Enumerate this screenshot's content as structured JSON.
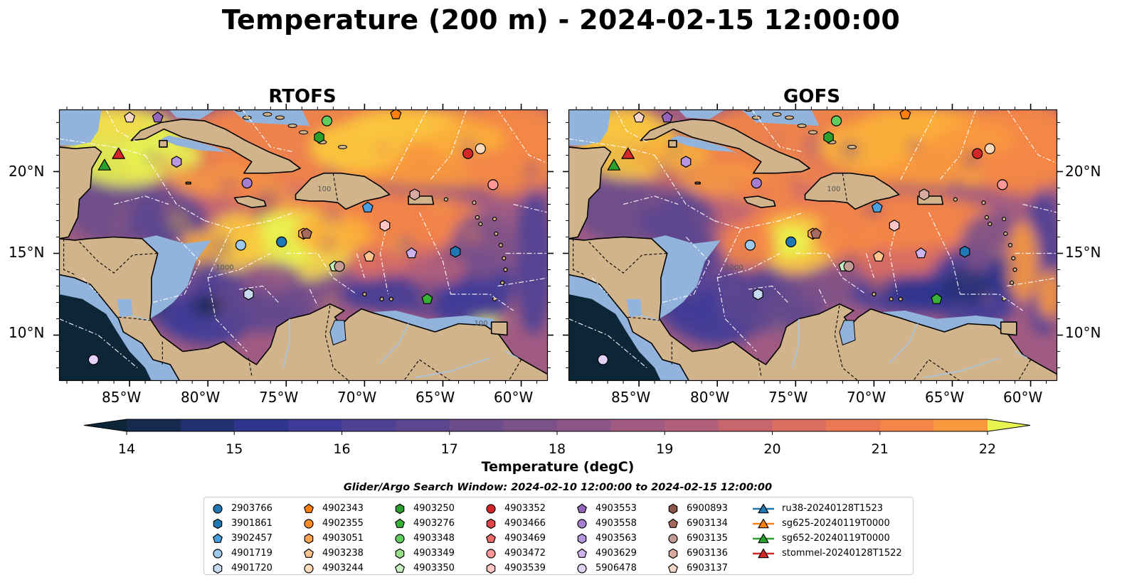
{
  "title": "Temperature (200 m) - 2024-02-15 12:00:00",
  "panels": [
    {
      "title": "RTOFS"
    },
    {
      "title": "GOFS"
    }
  ],
  "map": {
    "lon_ticks": [
      "85°W",
      "80°W",
      "75°W",
      "70°W",
      "65°W",
      "60°W"
    ],
    "lat_ticks": [
      "20°N",
      "15°N",
      "10°N"
    ],
    "extent": {
      "lon": [
        -89.5,
        -58.3
      ],
      "lat": [
        7.2,
        23.8
      ]
    },
    "contour_labels": [
      "1000",
      "100",
      "100"
    ],
    "colors": {
      "land": "#d2b48c",
      "shelf": "#92b4dc",
      "coast": "#000000",
      "eez": "#ffffff"
    }
  },
  "colorbar": {
    "label": "Temperature (degC)",
    "ticks": [
      "14",
      "15",
      "16",
      "17",
      "18",
      "19",
      "20",
      "21",
      "22"
    ],
    "range": [
      14,
      22
    ],
    "step": 0.5,
    "colors": [
      "#0c2638",
      "#162a4e",
      "#222f70",
      "#2d358c",
      "#3e3b98",
      "#4d4095",
      "#5c468f",
      "#6c4c8b",
      "#7c5189",
      "#8e5686",
      "#a05b82",
      "#b5607a",
      "#c8666f",
      "#da6e61",
      "#ea7853",
      "#f58647",
      "#f9993e",
      "#fbaf3a",
      "#f9c63e",
      "#f2dc4a",
      "#e8f450"
    ]
  },
  "search_window": "Glider/Argo Search Window: 2024-02-10 12:00:00 to 2024-02-15 12:00:00",
  "legend": [
    {
      "label": "2903766",
      "marker": "circle",
      "color": "#1f77b4"
    },
    {
      "label": "3901861",
      "marker": "hexagon",
      "color": "#1f77b4"
    },
    {
      "label": "3902457",
      "marker": "pentagon",
      "color": "#4a9fe0"
    },
    {
      "label": "4901719",
      "marker": "circle",
      "color": "#9ec9ea"
    },
    {
      "label": "4901720",
      "marker": "hexagon",
      "color": "#c6dbef"
    },
    {
      "label": "4902343",
      "marker": "pentagon",
      "color": "#ff7f0e"
    },
    {
      "label": "4902355",
      "marker": "circle",
      "color": "#ff8c2a"
    },
    {
      "label": "4903051",
      "marker": "hexagon",
      "color": "#ffa54f"
    },
    {
      "label": "4903238",
      "marker": "pentagon",
      "color": "#ffc48e"
    },
    {
      "label": "4903244",
      "marker": "circle",
      "color": "#ffdcbd"
    },
    {
      "label": "4903250",
      "marker": "hexagon",
      "color": "#2ca02c"
    },
    {
      "label": "4903276",
      "marker": "pentagon",
      "color": "#36b336"
    },
    {
      "label": "4903348",
      "marker": "circle",
      "color": "#5fce5f"
    },
    {
      "label": "4903349",
      "marker": "hexagon",
      "color": "#98df8a"
    },
    {
      "label": "4903350",
      "marker": "pentagon",
      "color": "#c7f0c0"
    },
    {
      "label": "4903352",
      "marker": "circle",
      "color": "#d62728"
    },
    {
      "label": "4903466",
      "marker": "hexagon",
      "color": "#e04545"
    },
    {
      "label": "4903469",
      "marker": "pentagon",
      "color": "#ef6a6a"
    },
    {
      "label": "4903472",
      "marker": "circle",
      "color": "#ff9896"
    },
    {
      "label": "4903539",
      "marker": "hexagon",
      "color": "#ffc6c5"
    },
    {
      "label": "4903553",
      "marker": "pentagon",
      "color": "#9467bd"
    },
    {
      "label": "4903558",
      "marker": "circle",
      "color": "#a67fd0"
    },
    {
      "label": "4903563",
      "marker": "hexagon",
      "color": "#b897e0"
    },
    {
      "label": "4903629",
      "marker": "pentagon",
      "color": "#cfb3ee"
    },
    {
      "label": "5906478",
      "marker": "circle",
      "color": "#e5d2fb"
    },
    {
      "label": "6900893",
      "marker": "hexagon",
      "color": "#8c564b"
    },
    {
      "label": "6903134",
      "marker": "pentagon",
      "color": "#a66b5e"
    },
    {
      "label": "6903135",
      "marker": "circle",
      "color": "#c49c94"
    },
    {
      "label": "6903136",
      "marker": "hexagon",
      "color": "#d9aaa0"
    },
    {
      "label": "6903137",
      "marker": "pentagon",
      "color": "#f7d6ca"
    },
    {
      "label": "ru38-20240128T1523",
      "marker": "triangle-line",
      "color": "#1f77b4"
    },
    {
      "label": "sg625-20240119T0000",
      "marker": "triangle-line",
      "color": "#ff7f0e"
    },
    {
      "label": "sg652-20240119T0000",
      "marker": "triangle-line",
      "color": "#2ca02c"
    },
    {
      "label": "stommel-20240128T1522",
      "marker": "triangle-line",
      "color": "#d62728"
    }
  ],
  "floats": [
    {
      "id": "2903766",
      "lon": -75.3,
      "lat": 15.7
    },
    {
      "id": "3901861",
      "lon": -64.2,
      "lat": 15.1
    },
    {
      "id": "3902457",
      "lon": -69.8,
      "lat": 17.8
    },
    {
      "id": "4901719",
      "lon": -77.9,
      "lat": 15.5
    },
    {
      "id": "4901720",
      "lon": -77.4,
      "lat": 12.5
    },
    {
      "id": "4902343",
      "lon": -68.0,
      "lat": 23.5
    },
    {
      "id": "4903051",
      "lon": -73.9,
      "lat": 16.2
    },
    {
      "id": "4903238",
      "lon": -69.7,
      "lat": 14.8
    },
    {
      "id": "4903244",
      "lon": -62.6,
      "lat": 21.4
    },
    {
      "id": "4903250",
      "lon": -72.9,
      "lat": 22.1
    },
    {
      "id": "4903276",
      "lon": -66.0,
      "lat": 12.2
    },
    {
      "id": "4903348",
      "lon": -72.4,
      "lat": 23.1
    },
    {
      "id": "4903350",
      "lon": -71.9,
      "lat": 14.2
    },
    {
      "id": "4903352",
      "lon": -63.4,
      "lat": 21.1
    },
    {
      "id": "4903472",
      "lon": -61.8,
      "lat": 19.2
    },
    {
      "id": "4903539",
      "lon": -68.7,
      "lat": 16.7
    },
    {
      "id": "4903553",
      "lon": -83.2,
      "lat": 23.3
    },
    {
      "id": "4903558",
      "lon": -77.5,
      "lat": 19.3
    },
    {
      "id": "4903563",
      "lon": -82.0,
      "lat": 20.6
    },
    {
      "id": "4903629",
      "lon": -67.0,
      "lat": 15.0
    },
    {
      "id": "5906478",
      "lon": -87.3,
      "lat": 8.5
    },
    {
      "id": "6903134",
      "lon": -73.7,
      "lat": 16.2
    },
    {
      "id": "6903135",
      "lon": -71.6,
      "lat": 14.2
    },
    {
      "id": "6903136",
      "lon": -66.8,
      "lat": 18.6
    },
    {
      "id": "6903137",
      "lon": -85.0,
      "lat": 23.3
    }
  ],
  "gliders": [
    {
      "id": "sg652-20240119T0000",
      "lon": -86.6,
      "lat": 20.4
    },
    {
      "id": "stommel-20240128T1522",
      "lon": -85.7,
      "lat": 21.1
    }
  ]
}
